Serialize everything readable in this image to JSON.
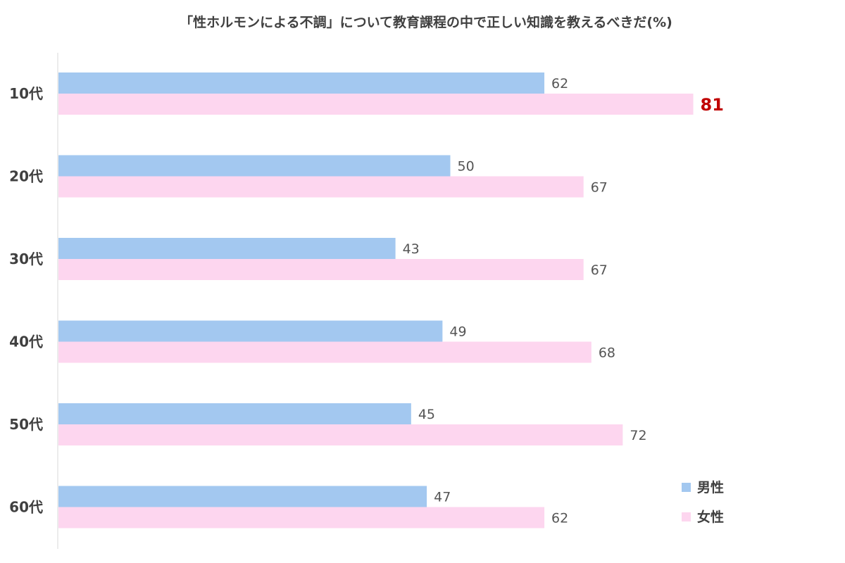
{
  "chart_data": {
    "type": "bar",
    "orientation": "horizontal",
    "title": "「性ホルモンによる不調」について教育課程の中で正しい知識を教えるべきだ(%)",
    "categories": [
      "10代",
      "20代",
      "30代",
      "40代",
      "50代",
      "60代"
    ],
    "series": [
      {
        "name": "男性",
        "color": "#a3c8f0",
        "values": [
          62,
          50,
          43,
          49,
          45,
          47
        ]
      },
      {
        "name": "女性",
        "color": "#fdd6ef",
        "values": [
          81,
          67,
          67,
          68,
          72,
          62
        ]
      }
    ],
    "highlight": {
      "series": 1,
      "category": 0,
      "color": "#c00000"
    },
    "xlim": [
      0,
      100
    ],
    "legend_position": "bottom-right",
    "grid": false
  }
}
